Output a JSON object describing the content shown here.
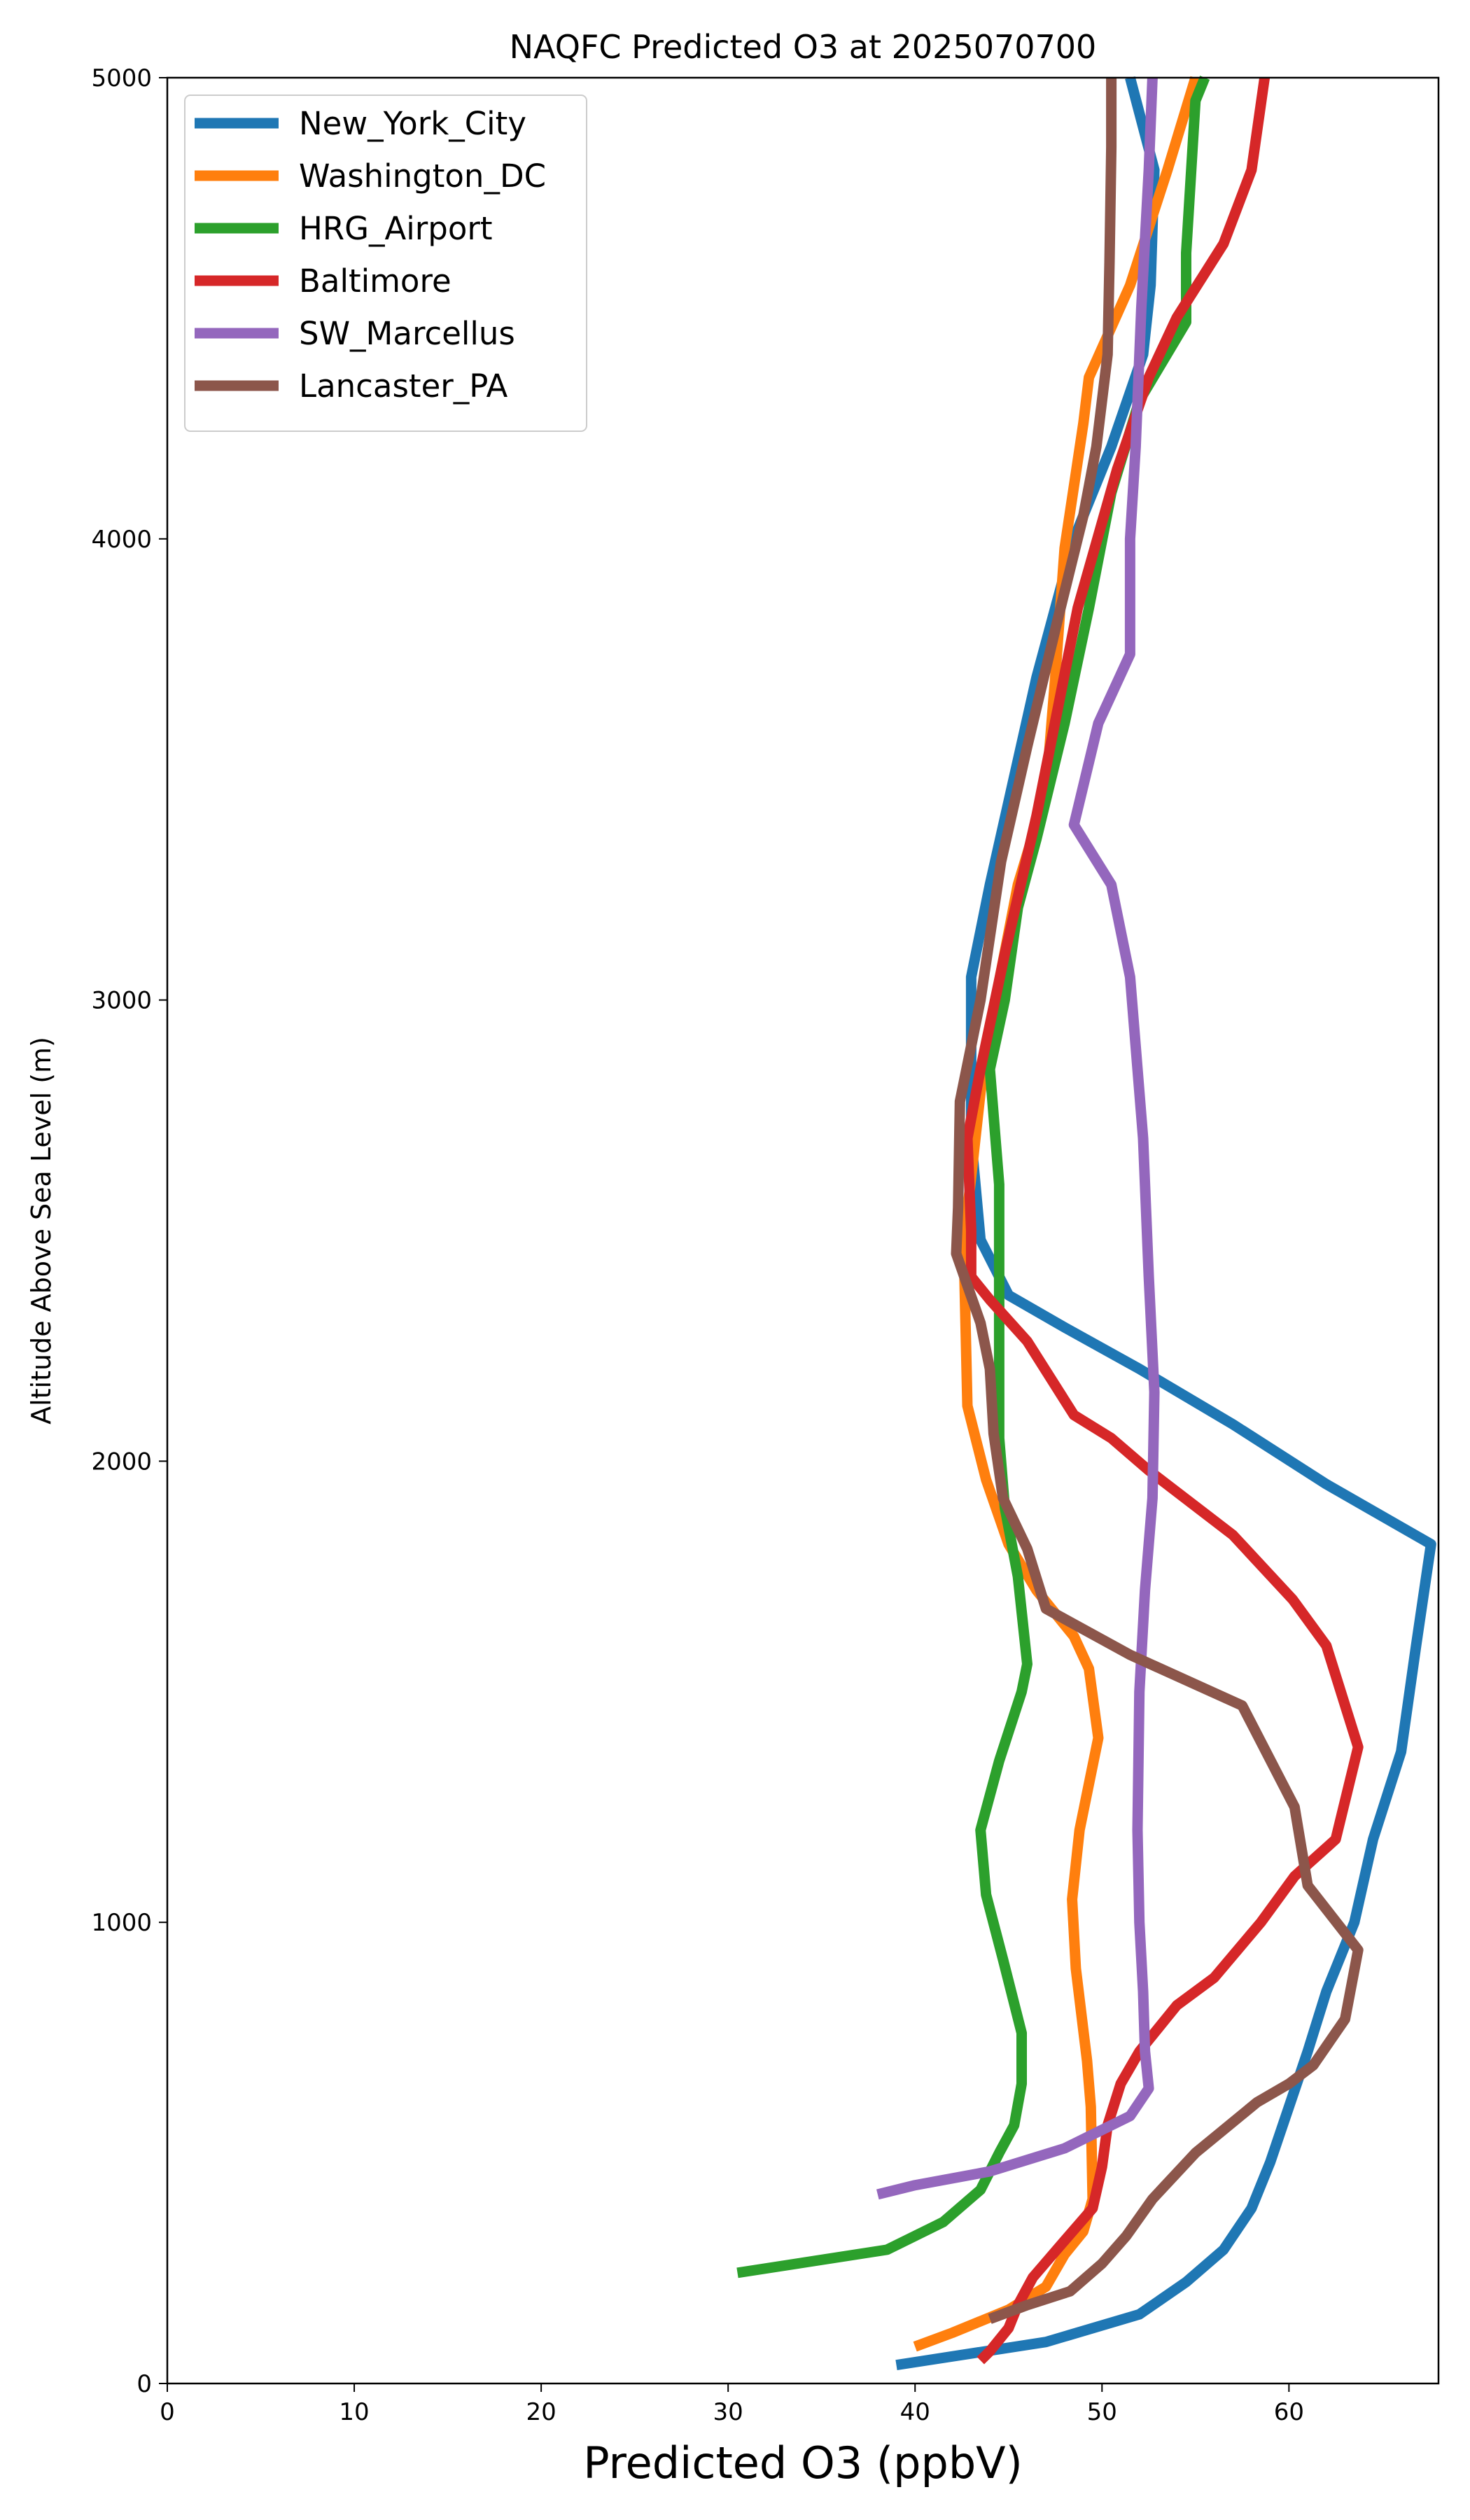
{
  "chart_data": {
    "type": "line",
    "title": "NAQFC Predicted O3 at 2025070700",
    "xlabel": "Predicted O3 (ppbV)",
    "ylabel": "Altitude Above Sea Level (m)",
    "xlim": [
      0,
      68
    ],
    "ylim": [
      0,
      5000
    ],
    "xticks": [
      "0",
      "10",
      "20",
      "30",
      "40",
      "50",
      "60"
    ],
    "yticks": [
      "0",
      "1000",
      "2000",
      "3000",
      "4000",
      "5000"
    ],
    "grid": false,
    "legend_position": "upper-left",
    "series": [
      {
        "name": "New_York_City",
        "color": "#1f77b4",
        "points": [
          [
            39,
            40
          ],
          [
            47,
            90
          ],
          [
            52,
            150
          ],
          [
            54.5,
            220
          ],
          [
            56.5,
            290
          ],
          [
            58,
            380
          ],
          [
            59,
            480
          ],
          [
            60,
            600
          ],
          [
            61,
            720
          ],
          [
            62,
            850
          ],
          [
            63.5,
            1000
          ],
          [
            64.5,
            1180
          ],
          [
            66,
            1370
          ],
          [
            66.8,
            1600
          ],
          [
            67.6,
            1820
          ],
          [
            62,
            1950
          ],
          [
            57,
            2080
          ],
          [
            52,
            2200
          ],
          [
            48,
            2290
          ],
          [
            45,
            2360
          ],
          [
            43.5,
            2480
          ],
          [
            43,
            2700
          ],
          [
            43,
            3050
          ],
          [
            44,
            3250
          ],
          [
            46.5,
            3700
          ],
          [
            48.5,
            4000
          ],
          [
            50.5,
            4200
          ],
          [
            52.2,
            4400
          ],
          [
            52.6,
            4550
          ],
          [
            52.8,
            4800
          ],
          [
            51.5,
            5000
          ]
        ]
      },
      {
        "name": "Washington_DC",
        "color": "#ff7f0e",
        "points": [
          [
            40,
            80
          ],
          [
            42,
            110
          ],
          [
            45,
            160
          ],
          [
            47,
            210
          ],
          [
            48,
            280
          ],
          [
            49,
            330
          ],
          [
            49.5,
            400
          ],
          [
            49.4,
            600
          ],
          [
            49.2,
            700
          ],
          [
            48.9,
            800
          ],
          [
            48.6,
            900
          ],
          [
            48.4,
            1050
          ],
          [
            48.8,
            1200
          ],
          [
            49.8,
            1400
          ],
          [
            49.3,
            1550
          ],
          [
            48.5,
            1620
          ],
          [
            46.5,
            1720
          ],
          [
            45,
            1820
          ],
          [
            43.8,
            1960
          ],
          [
            42.8,
            2120
          ],
          [
            42.7,
            2300
          ],
          [
            42.6,
            2470
          ],
          [
            43.5,
            2800
          ],
          [
            44.3,
            3000
          ],
          [
            45.5,
            3250
          ],
          [
            47,
            3450
          ],
          [
            47.5,
            3700
          ],
          [
            48,
            3980
          ],
          [
            49,
            4250
          ],
          [
            49.3,
            4350
          ],
          [
            51.5,
            4550
          ],
          [
            53.5,
            4800
          ],
          [
            55,
            5000
          ]
        ]
      },
      {
        "name": "HRG_Airport",
        "color": "#2ca02c",
        "points": [
          [
            30.5,
            240
          ],
          [
            38.5,
            290
          ],
          [
            41.5,
            350
          ],
          [
            43.5,
            420
          ],
          [
            44.5,
            500
          ],
          [
            45.3,
            560
          ],
          [
            45.7,
            650
          ],
          [
            45.7,
            760
          ],
          [
            44.7,
            920
          ],
          [
            43.8,
            1060
          ],
          [
            43.5,
            1200
          ],
          [
            44.5,
            1350
          ],
          [
            45.7,
            1500
          ],
          [
            46,
            1560
          ],
          [
            45.5,
            1750
          ],
          [
            44.8,
            1900
          ],
          [
            44.5,
            2050
          ],
          [
            44.5,
            2250
          ],
          [
            44.5,
            2450
          ],
          [
            44.5,
            2600
          ],
          [
            44,
            2850
          ],
          [
            44.8,
            3000
          ],
          [
            45.5,
            3200
          ],
          [
            46.5,
            3350
          ],
          [
            48,
            3600
          ],
          [
            49.3,
            3850
          ],
          [
            50.5,
            4100
          ],
          [
            52,
            4300
          ],
          [
            54.5,
            4470
          ],
          [
            54.5,
            4620
          ],
          [
            55,
            4950
          ],
          [
            55.5,
            5000
          ]
        ]
      },
      {
        "name": "Baltimore",
        "color": "#d62728",
        "points": [
          [
            43.5,
            50
          ],
          [
            44,
            70
          ],
          [
            45,
            120
          ],
          [
            45.5,
            170
          ],
          [
            46.3,
            230
          ],
          [
            48,
            310
          ],
          [
            49.5,
            380
          ],
          [
            50,
            470
          ],
          [
            50.3,
            560
          ],
          [
            51,
            650
          ],
          [
            52,
            720
          ],
          [
            54,
            820
          ],
          [
            56,
            880
          ],
          [
            58.5,
            1000
          ],
          [
            60.3,
            1100
          ],
          [
            62.5,
            1180
          ],
          [
            63.7,
            1380
          ],
          [
            62,
            1600
          ],
          [
            60.2,
            1700
          ],
          [
            57,
            1840
          ],
          [
            52.5,
            1980
          ],
          [
            50.5,
            2050
          ],
          [
            48.5,
            2100
          ],
          [
            46,
            2260
          ],
          [
            44,
            2350
          ],
          [
            43,
            2400
          ],
          [
            43,
            2500
          ],
          [
            42.8,
            2700
          ],
          [
            43.5,
            2850
          ],
          [
            44.8,
            3100
          ],
          [
            46.5,
            3400
          ],
          [
            48.7,
            3850
          ],
          [
            50.8,
            4150
          ],
          [
            52.5,
            4350
          ],
          [
            54,
            4480
          ],
          [
            56.5,
            4640
          ],
          [
            58,
            4800
          ],
          [
            58.7,
            5000
          ]
        ]
      },
      {
        "name": "SW_Marcellus",
        "color": "#9467bd",
        "points": [
          [
            38,
            410
          ],
          [
            40,
            430
          ],
          [
            44,
            460
          ],
          [
            48,
            510
          ],
          [
            51.5,
            580
          ],
          [
            52.5,
            640
          ],
          [
            52.3,
            720
          ],
          [
            52.2,
            850
          ],
          [
            52,
            1000
          ],
          [
            51.9,
            1200
          ],
          [
            52,
            1500
          ],
          [
            52.3,
            1720
          ],
          [
            52.7,
            1920
          ],
          [
            52.8,
            2150
          ],
          [
            52.5,
            2400
          ],
          [
            52.2,
            2700
          ],
          [
            51.5,
            3050
          ],
          [
            50.5,
            3250
          ],
          [
            48.5,
            3380
          ],
          [
            49.8,
            3600
          ],
          [
            51.5,
            3750
          ],
          [
            51.5,
            4000
          ],
          [
            51.8,
            4200
          ],
          [
            52.1,
            4500
          ],
          [
            52.5,
            4800
          ],
          [
            52.7,
            5000
          ]
        ]
      },
      {
        "name": "Lancaster_PA",
        "color": "#8c564b",
        "points": [
          [
            44,
            140
          ],
          [
            46,
            170
          ],
          [
            48.3,
            200
          ],
          [
            50,
            260
          ],
          [
            51.3,
            320
          ],
          [
            52.7,
            400
          ],
          [
            55,
            500
          ],
          [
            58.3,
            610
          ],
          [
            60,
            650
          ],
          [
            61.3,
            690
          ],
          [
            63,
            790
          ],
          [
            63.7,
            940
          ],
          [
            61,
            1080
          ],
          [
            60.3,
            1250
          ],
          [
            57.5,
            1470
          ],
          [
            51.5,
            1580
          ],
          [
            47,
            1680
          ],
          [
            46,
            1810
          ],
          [
            44.7,
            1920
          ],
          [
            44.2,
            2060
          ],
          [
            44,
            2200
          ],
          [
            43.5,
            2300
          ],
          [
            42.2,
            2450
          ],
          [
            42.3,
            2550
          ],
          [
            42.4,
            2780
          ],
          [
            43.5,
            3000
          ],
          [
            44.6,
            3300
          ],
          [
            46,
            3550
          ],
          [
            47.6,
            3820
          ],
          [
            49,
            4050
          ],
          [
            49.7,
            4200
          ],
          [
            50.3,
            4400
          ],
          [
            50.4,
            4600
          ],
          [
            50.5,
            4850
          ],
          [
            50.5,
            5000
          ]
        ]
      }
    ]
  }
}
